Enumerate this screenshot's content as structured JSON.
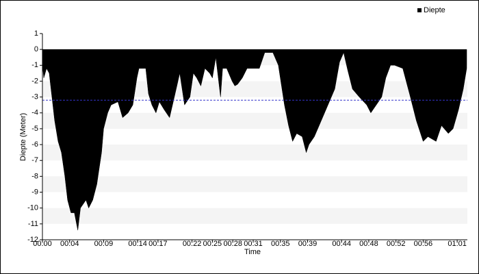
{
  "chart_data": {
    "type": "area",
    "x_label": "Time",
    "y_label": "Diepte (Meter)",
    "series": [
      {
        "name": "Diepte",
        "color": "#000000",
        "x": [
          0,
          0.2,
          0.6,
          1.0,
          1.4,
          1.8,
          2.3,
          2.8,
          3.3,
          3.7,
          4.2,
          4.7,
          5.2,
          5.6,
          6.4,
          6.8,
          7.4,
          8.0,
          8.7,
          9.0,
          9.6,
          10.1,
          11.1,
          11.8,
          12.6,
          13.3,
          13.9,
          14.2,
          15.2,
          15.6,
          16.1,
          16.7,
          17.2,
          17.9,
          18.7,
          19.4,
          20.2,
          20.9,
          21.7,
          22.2,
          22.7,
          23.3,
          23.9,
          24.6,
          25.0,
          25.5,
          26.2,
          26.5,
          27.1,
          27.9,
          28.3,
          28.7,
          29.4,
          30.1,
          30.9,
          31.9,
          32.7,
          33.9,
          34.7,
          35.6,
          36.2,
          36.8,
          37.4,
          38.2,
          38.8,
          39.2,
          40.0,
          41.0,
          42.0,
          43.0,
          43.7,
          44.3,
          44.9,
          45.6,
          46.6,
          47.7,
          48.3,
          49.1,
          49.9,
          50.5,
          51.2,
          51.8,
          53.0,
          54.0,
          55.0,
          56.0,
          56.7,
          57.9,
          58.7,
          59.7,
          60.4,
          61.2,
          61.9,
          62.4
        ],
        "values": [
          -1.0,
          -1.8,
          -1.2,
          -1.5,
          -3,
          -4.5,
          -5.8,
          -6.5,
          -8,
          -9.5,
          -10.3,
          -10.3,
          -11.4,
          -10,
          -9.5,
          -10,
          -9.5,
          -8.5,
          -6.5,
          -5.0,
          -4,
          -3.5,
          -3.3,
          -4.3,
          -4.0,
          -3.5,
          -1.8,
          -1.2,
          -1.2,
          -2.8,
          -3.5,
          -4.0,
          -3.3,
          -3.8,
          -4.3,
          -3,
          -1.5,
          -3.5,
          -3,
          -1.5,
          -1.8,
          -2.3,
          -1.2,
          -1.5,
          -1.8,
          -0.5,
          -3.0,
          -1.2,
          -1.2,
          -2.0,
          -2.3,
          -2.2,
          -1.8,
          -1.2,
          -1.2,
          -1.2,
          -0.2,
          -0.2,
          -1.0,
          -3.5,
          -4.8,
          -5.8,
          -5.3,
          -5.5,
          -6.5,
          -6.0,
          -5.5,
          -4.5,
          -3.5,
          -2.5,
          -0.8,
          -0.2,
          -1.3,
          -2.5,
          -3.0,
          -3.5,
          -4.0,
          -3.5,
          -3.0,
          -1.8,
          -1.0,
          -1.0,
          -1.2,
          -2.8,
          -4.5,
          -5.8,
          -5.5,
          -5.8,
          -4.8,
          -5.3,
          -5.0,
          -3.8,
          -2.5,
          -1.2
        ]
      }
    ],
    "reference_line": -3.2,
    "reference_color": "#3333cc",
    "xlim": [
      0,
      62.5
    ],
    "xticks": [
      {
        "value": 0,
        "label": "00:00"
      },
      {
        "value": 4,
        "label": "00:04"
      },
      {
        "value": 9,
        "label": "00:09"
      },
      {
        "value": 14,
        "label": "00:14"
      },
      {
        "value": 17,
        "label": "00:17"
      },
      {
        "value": 22,
        "label": "00:22"
      },
      {
        "value": 25,
        "label": "00:25"
      },
      {
        "value": 28,
        "label": "00:28"
      },
      {
        "value": 31,
        "label": "00:31"
      },
      {
        "value": 35,
        "label": "00:35"
      },
      {
        "value": 39,
        "label": "00:39"
      },
      {
        "value": 44,
        "label": "00:44"
      },
      {
        "value": 48,
        "label": "00:48"
      },
      {
        "value": 52,
        "label": "00:52"
      },
      {
        "value": 56,
        "label": "00:56"
      },
      {
        "value": 61,
        "label": "01:01"
      }
    ],
    "ylim": [
      -12,
      1
    ],
    "yticks": [
      1,
      0,
      -1,
      -2,
      -3,
      -4,
      -5,
      -6,
      -7,
      -8,
      -9,
      -10,
      -11,
      -12
    ],
    "legend": "top-right",
    "bands": true
  }
}
